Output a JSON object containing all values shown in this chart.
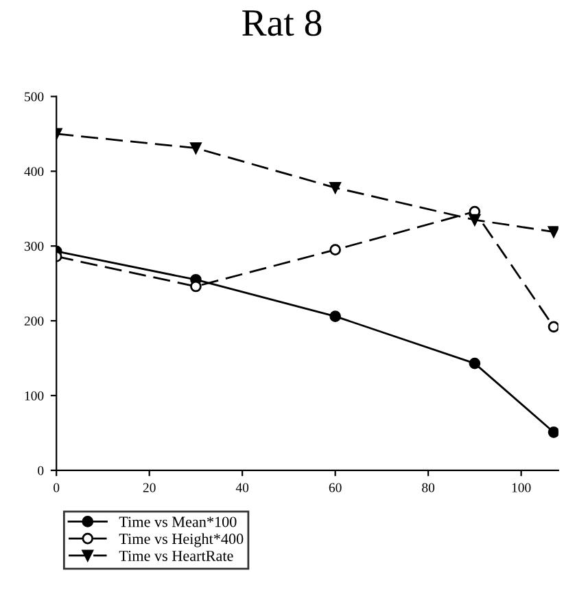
{
  "chart_data": {
    "type": "line",
    "title": "Rat 8",
    "x": [
      0,
      30,
      60,
      90,
      107
    ],
    "xlim": [
      0,
      108
    ],
    "xticks": [
      0,
      20,
      40,
      60,
      80,
      100
    ],
    "ylim": [
      0,
      500
    ],
    "yticks": [
      0,
      100,
      200,
      300,
      400,
      500
    ],
    "grid": false,
    "legend": "bottom left",
    "series": [
      {
        "name": "Time vs Mean*100",
        "color": "#000000",
        "marker": "circle",
        "line_style": "solid",
        "values": [
          293,
          255,
          206,
          143,
          51
        ]
      },
      {
        "name": "Time vs Height*400",
        "color": "#000000",
        "marker": "circle",
        "line_style": "dashed",
        "values": [
          286,
          246,
          295,
          346,
          192
        ]
      },
      {
        "name": "Time vs HeartRate",
        "color": "#000000",
        "marker": "triangle",
        "line_style": "dashed",
        "values": [
          450,
          431,
          378,
          335,
          319
        ]
      }
    ]
  }
}
